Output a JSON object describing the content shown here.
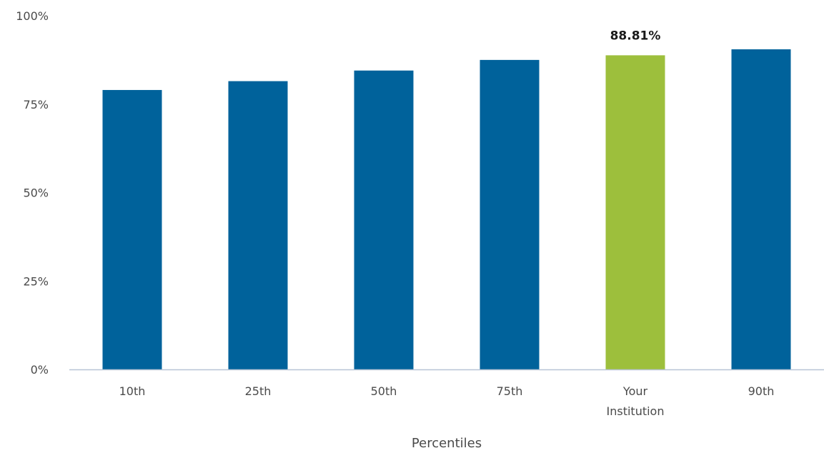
{
  "chart_data": {
    "type": "bar",
    "categories": [
      [
        "10th"
      ],
      [
        "25th"
      ],
      [
        "50th"
      ],
      [
        "75th"
      ],
      [
        "Your",
        "Institution"
      ],
      [
        "90th"
      ]
    ],
    "values": [
      79,
      81.5,
      84.5,
      87.5,
      88.81,
      90.5
    ],
    "highlight_index": 4,
    "data_labels": [
      "",
      "",
      "",
      "",
      "88.81%",
      ""
    ],
    "xlabel": "Percentiles",
    "ylabel": "",
    "ylim": [
      0,
      100
    ],
    "yticks": [
      0,
      25,
      50,
      75,
      100
    ],
    "ytick_labels": [
      "0%",
      "25%",
      "50%",
      "75%",
      "100%"
    ],
    "grid": false,
    "colors": {
      "bar": "#00629B",
      "highlight": "#9DBF3C",
      "axis": "#b8c4d6"
    }
  }
}
